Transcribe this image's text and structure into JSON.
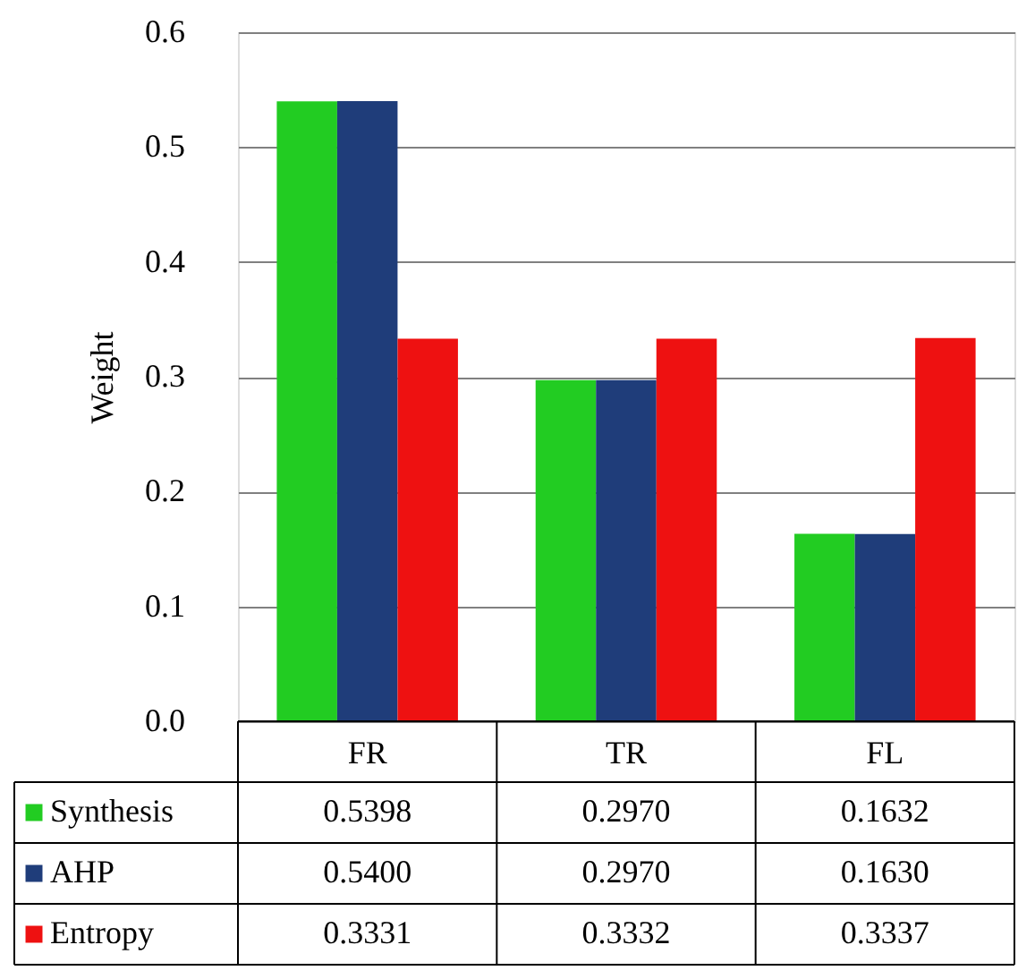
{
  "chart_data": {
    "type": "bar",
    "ylabel": "Weight",
    "categories": [
      "FR",
      "TR",
      "FL"
    ],
    "series": [
      {
        "name": "Synthesis",
        "color": "#22cc22",
        "values": [
          0.5398,
          0.297,
          0.1632
        ],
        "value_labels": [
          "0.5398",
          "0.2970",
          "0.1632"
        ]
      },
      {
        "name": "AHP",
        "color": "#1f3d7a",
        "values": [
          0.54,
          0.297,
          0.163
        ],
        "value_labels": [
          "0.5400",
          "0.2970",
          "0.1630"
        ]
      },
      {
        "name": "Entropy",
        "color": "#ee1111",
        "values": [
          0.3331,
          0.3332,
          0.3337
        ],
        "value_labels": [
          "0.3331",
          "0.3332",
          "0.3337"
        ]
      }
    ],
    "ylim": [
      0,
      0.6
    ],
    "yticks": [
      {
        "value": 0,
        "label": "0.0"
      },
      0.1,
      0.2,
      0.3,
      0.4,
      0.5,
      0.6
    ],
    "grid": "y",
    "legend": "bottom"
  }
}
